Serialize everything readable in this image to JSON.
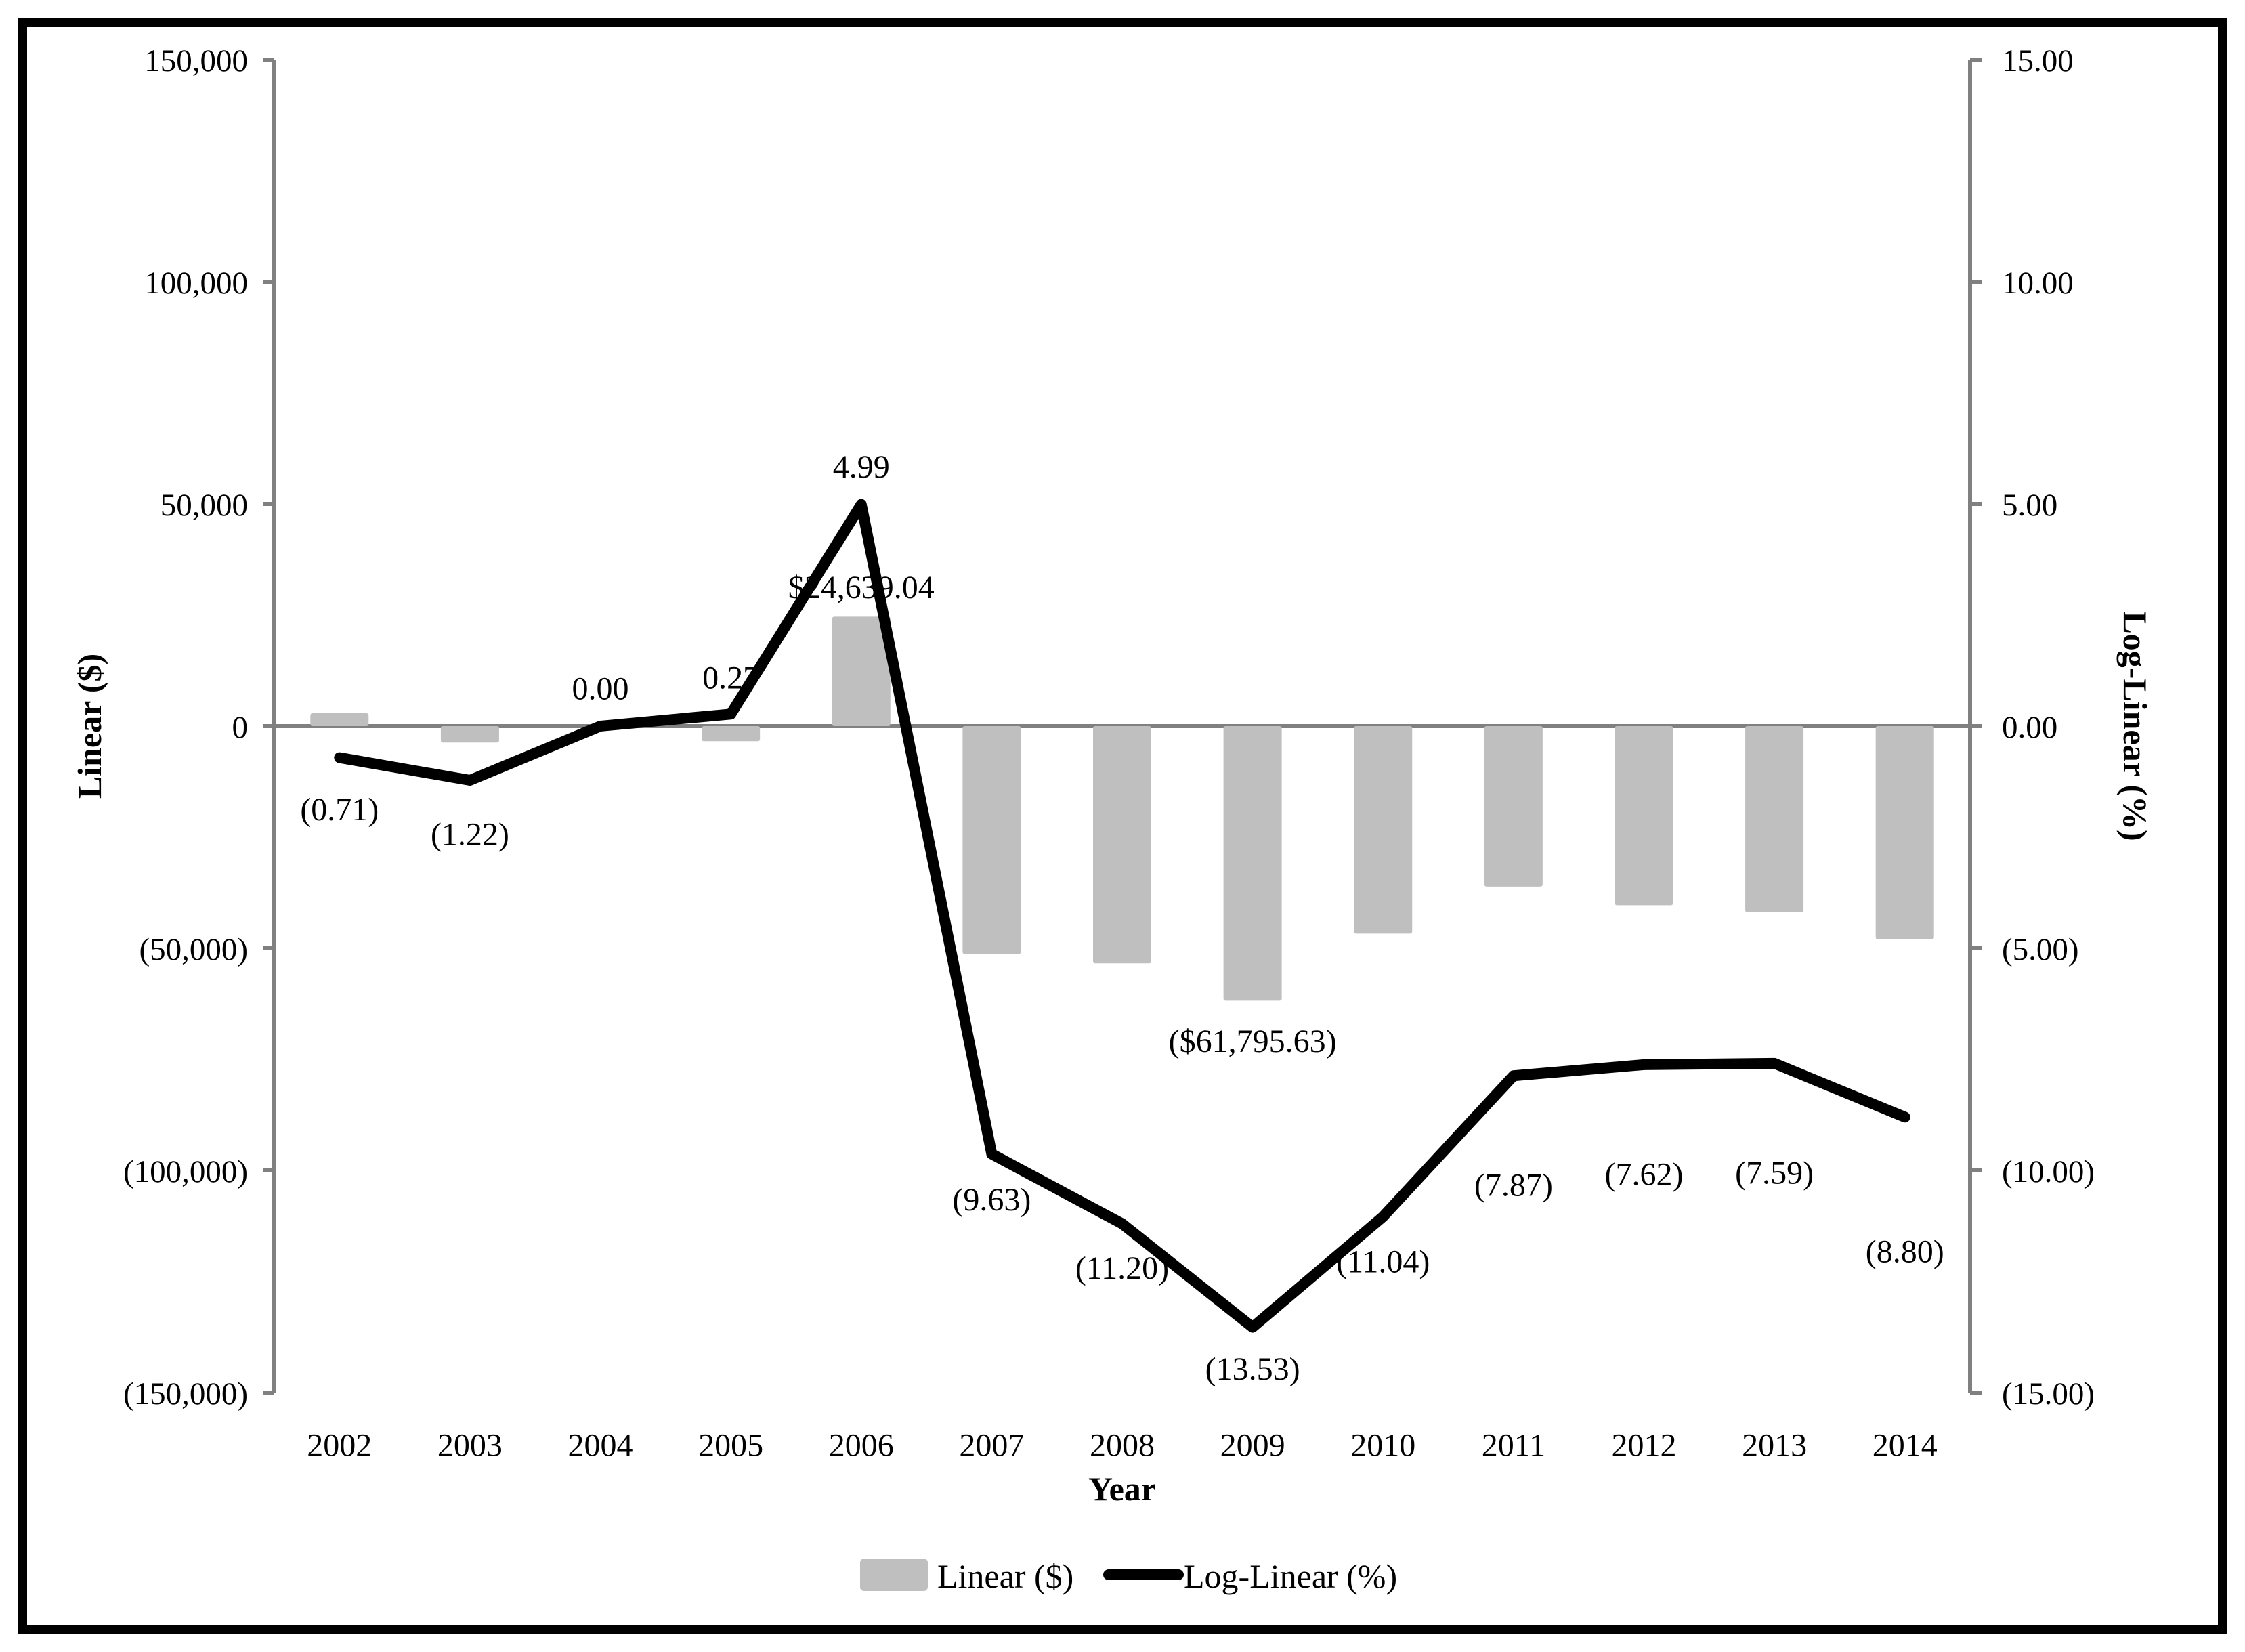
{
  "figure": {
    "background": "#ffffff",
    "border_color": "#000000"
  },
  "chart_data": {
    "type": "combo-bar-line",
    "categories": [
      "2002",
      "2003",
      "2004",
      "2005",
      "2006",
      "2007",
      "2008",
      "2009",
      "2010",
      "2011",
      "2012",
      "2013",
      "2014"
    ],
    "xlabel": "Year",
    "grid": "zero-line-only",
    "legend_position": "bottom",
    "series": [
      {
        "name": "Linear ($)",
        "type": "bar",
        "axis": "left",
        "color": "#bfbfbf",
        "values": [
          2900,
          -3700,
          0,
          -3400,
          24639.04,
          -51300,
          -53400,
          -61795.63,
          -46700,
          -36100,
          -40300,
          -41900,
          -48000
        ],
        "data_labels": {
          "2006": "$24,639.04",
          "2009": "($61,795.63)"
        }
      },
      {
        "name": "Log-Linear (%)",
        "type": "line",
        "axis": "right",
        "color": "#000000",
        "values": [
          -0.71,
          -1.22,
          0.0,
          0.27,
          4.99,
          -9.63,
          -11.2,
          -13.53,
          -11.04,
          -7.87,
          -7.62,
          -7.59,
          -8.8
        ],
        "data_labels_all": [
          "(0.71)",
          "(1.22)",
          "0.00",
          "0.27",
          "4.99",
          "(9.63)",
          "(11.20)",
          "(13.53)",
          "(11.04)",
          "(7.87)",
          "(7.62)",
          "(7.59)",
          "(8.80)"
        ]
      }
    ],
    "left_axis": {
      "title": "Linear ($)",
      "min": -150000,
      "max": 150000,
      "step": 50000,
      "tick_labels": [
        "150,000",
        "100,000",
        "50,000",
        "0",
        "(50,000)",
        "(100,000)",
        "(150,000)"
      ],
      "color": "#808080"
    },
    "right_axis": {
      "title": "Log-Linear (%)",
      "min": -15,
      "max": 15,
      "step": 5,
      "tick_labels": [
        "15.00",
        "10.00",
        "5.00",
        "0.00",
        "(5.00)",
        "(10.00)",
        "(15.00)"
      ],
      "color": "#808080"
    },
    "legend": [
      "Linear ($)",
      "Log-Linear (%)"
    ]
  }
}
